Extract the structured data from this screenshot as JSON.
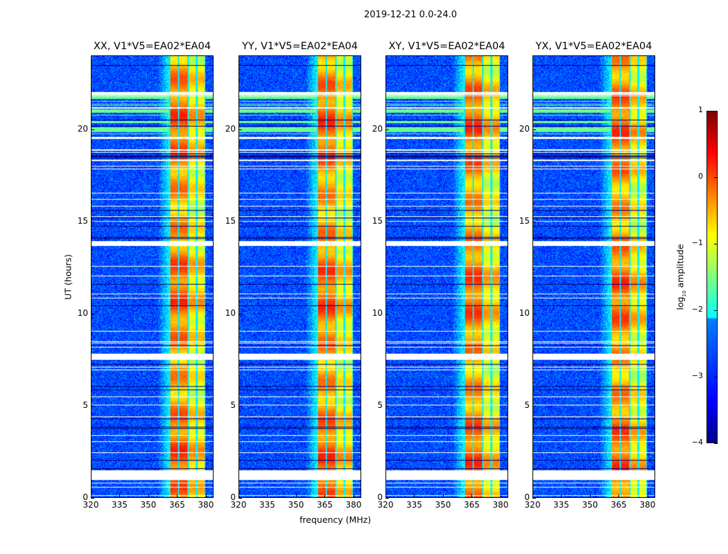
{
  "figure_title": "2019-12-21 0.0-24.0",
  "chart_data": [
    {
      "type": "heatmap",
      "title": "XX, V1*V5=EA02*EA04",
      "xlabel": "frequency (MHz)",
      "ylabel": "UT (hours)",
      "xlim": [
        320,
        384
      ],
      "ylim": [
        0,
        24
      ],
      "xticks": [
        320,
        335,
        350,
        365,
        380
      ],
      "yticks": [
        0,
        5,
        10,
        15,
        20
      ],
      "seed": 1
    },
    {
      "type": "heatmap",
      "title": "YY, V1*V5=EA02*EA04",
      "xlabel": "frequency (MHz)",
      "ylabel": "",
      "xlim": [
        320,
        384
      ],
      "ylim": [
        0,
        24
      ],
      "xticks": [
        320,
        335,
        350,
        365,
        380
      ],
      "yticks": [
        0,
        5,
        10,
        15,
        20
      ],
      "seed": 2
    },
    {
      "type": "heatmap",
      "title": "XY, V1*V5=EA02*EA04",
      "xlabel": "",
      "ylabel": "",
      "xlim": [
        320,
        384
      ],
      "ylim": [
        0,
        24
      ],
      "xticks": [
        320,
        335,
        350,
        365,
        380
      ],
      "yticks": [
        0,
        5,
        10,
        15,
        20
      ],
      "seed": 3
    },
    {
      "type": "heatmap",
      "title": "YX, V1*V5=EA02*EA04",
      "xlabel": "",
      "ylabel": "",
      "xlim": [
        320,
        384
      ],
      "ylim": [
        0,
        24
      ],
      "xticks": [
        320,
        335,
        350,
        365,
        380
      ],
      "yticks": [
        0,
        5,
        10,
        15,
        20
      ],
      "seed": 4
    }
  ],
  "heatmap_model": {
    "background_log_amp": -3.0,
    "rfi_band_mhz": [
      361,
      380
    ],
    "rfi_subband_edges_mhz": [
      361,
      366,
      371,
      375.5,
      380
    ],
    "rfi_band_log_amp": -0.3,
    "flagged_hours": [
      [
        0.94,
        1.46
      ],
      [
        7.5,
        7.8
      ],
      [
        13.67,
        13.9
      ],
      [
        19.5,
        19.62
      ],
      [
        21.9,
        22.05
      ]
    ],
    "broadband_rfi_hours": [
      19.7,
      21.9
    ]
  },
  "colorbar": {
    "label": "log₁₀ amplitude",
    "label_main": "log",
    "label_sub": "10",
    "label_rest": " amplitude",
    "range": [
      -4,
      1
    ],
    "ticks": [
      1,
      0,
      -1,
      -2,
      -3,
      -4
    ],
    "colormap": "jet"
  },
  "axis_labels": {
    "x": "frequency (MHz)",
    "y": "UT (hours)"
  }
}
